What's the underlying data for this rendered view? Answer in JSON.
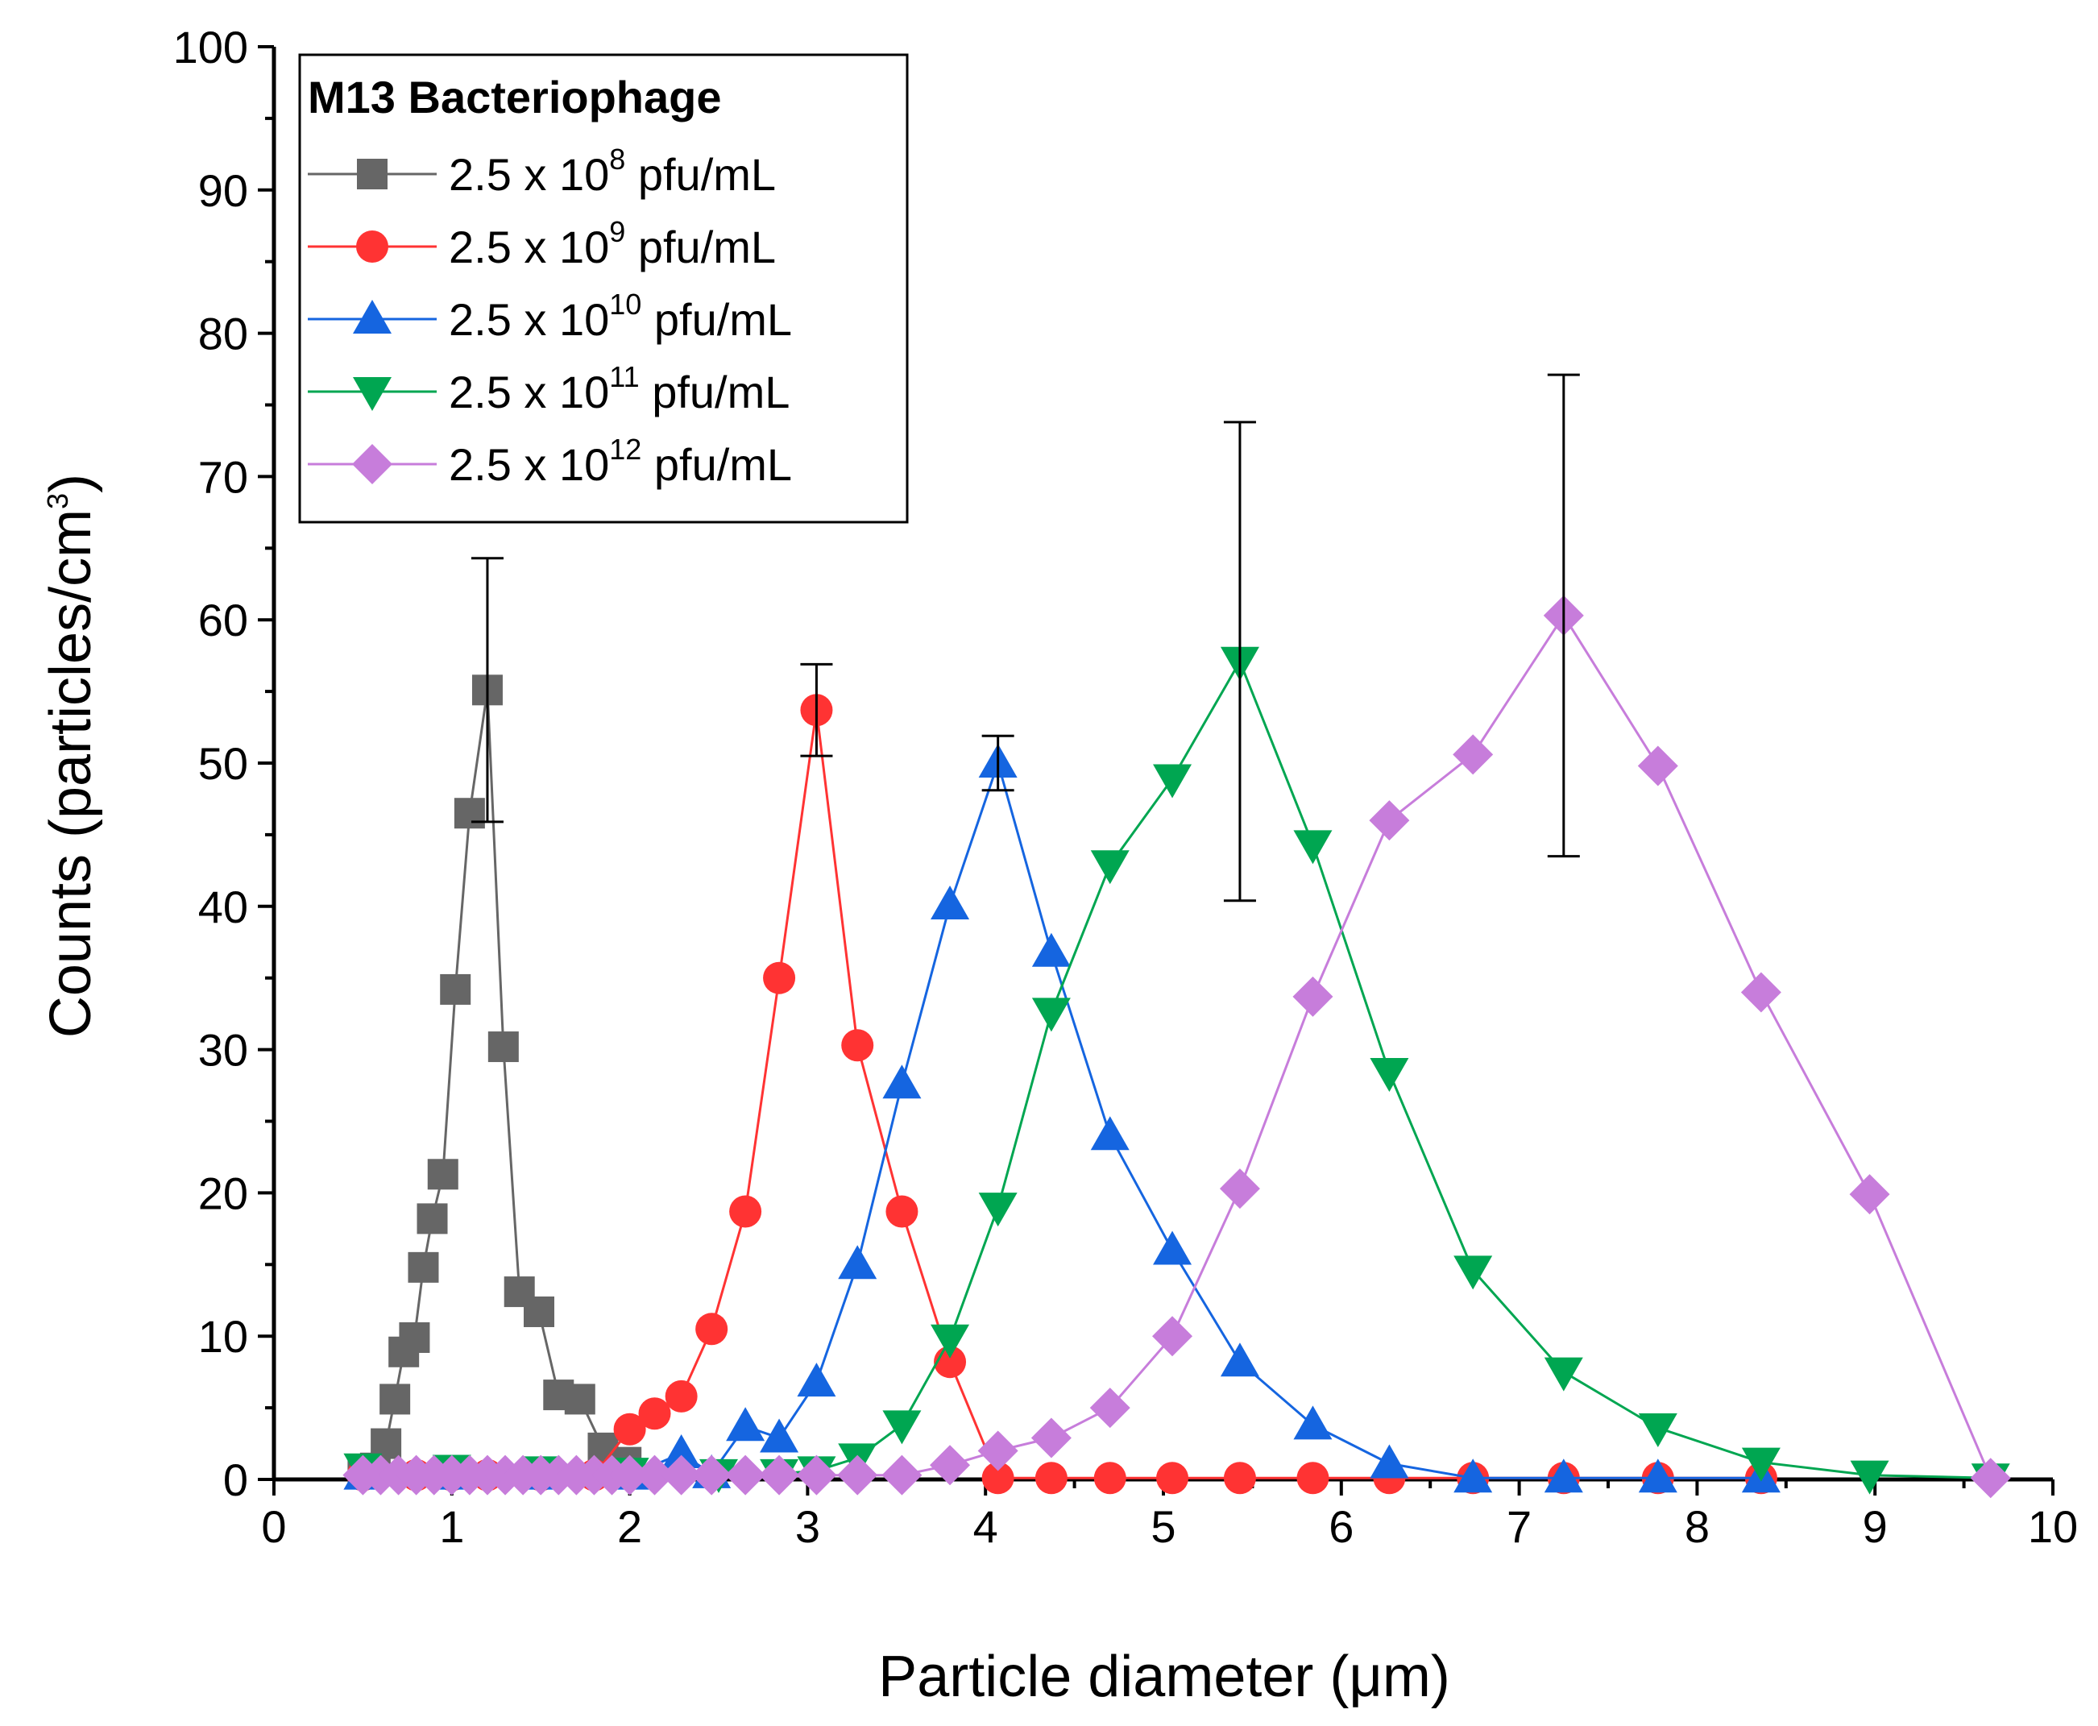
{
  "chart_data": {
    "type": "line",
    "title": "",
    "xlabel": "Particle diameter (μm)",
    "ylabel_main": "Counts (particles/cm",
    "ylabel_sup": "3",
    "ylabel_end": ")",
    "xlim": [
      0,
      10
    ],
    "ylim": [
      0,
      100
    ],
    "xticks": [
      0,
      1,
      2,
      3,
      4,
      5,
      6,
      7,
      8,
      9,
      10
    ],
    "yticks": [
      0,
      10,
      20,
      30,
      40,
      50,
      60,
      70,
      80,
      90,
      100
    ],
    "grid": false,
    "legend": {
      "title": "M13 Bacteriophage",
      "position": "top-left"
    },
    "series": [
      {
        "name": "2.5 x 10^8 pfu/mL",
        "label_base": "2.5 x 10",
        "label_exp": "8",
        "label_unit": " pfu/mL",
        "color": "#666666",
        "marker": "square",
        "x": [
          0.5,
          0.57,
          0.63,
          0.68,
          0.73,
          0.79,
          0.84,
          0.89,
          0.95,
          1.02,
          1.1,
          1.2,
          1.29,
          1.38,
          1.49,
          1.6,
          1.72,
          1.85,
          1.98
        ],
        "y": [
          0.5,
          0.8,
          2.5,
          5.6,
          8.9,
          9.9,
          14.8,
          18.2,
          21.3,
          34.2,
          46.5,
          55.1,
          30.2,
          13.1,
          11.7,
          5.9,
          5.6,
          2.2,
          1.2
        ],
        "errors": [
          {
            "x": 1.2,
            "y": 55.1,
            "err": 9.2
          }
        ]
      },
      {
        "name": "2.5 x 10^9 pfu/mL",
        "label_base": "2.5 x 10",
        "label_exp": "9",
        "label_unit": " pfu/mL",
        "color": "#ff3333",
        "marker": "circle",
        "x": [
          0.5,
          0.8,
          1.0,
          1.2,
          1.5,
          1.8,
          2.0,
          2.14,
          2.29,
          2.46,
          2.65,
          2.84,
          3.05,
          3.28,
          3.53,
          3.8,
          4.07,
          4.37,
          4.7,
          5.05,
          5.43,
          5.84,
          6.27,
          6.74,
          7.25,
          7.78,
          8.36
        ],
        "y": [
          0.3,
          0.3,
          0.3,
          0.3,
          0.3,
          0.3,
          3.5,
          4.6,
          5.8,
          10.5,
          18.7,
          35.0,
          53.7,
          30.3,
          18.7,
          8.2,
          0.1,
          0.1,
          0.1,
          0.1,
          0.1,
          0.1,
          0.1,
          0.1,
          0.1,
          0.1,
          0.1
        ],
        "errors": [
          {
            "x": 3.05,
            "y": 53.7,
            "err": 3.2
          }
        ]
      },
      {
        "name": "2.5 x 10^10 pfu/mL",
        "label_base": "2.5 x 10",
        "label_exp": "10",
        "label_unit": " pfu/mL",
        "color": "#1565e0",
        "marker": "triangle-up",
        "x": [
          0.5,
          1.0,
          1.5,
          2.0,
          2.29,
          2.46,
          2.65,
          2.84,
          3.05,
          3.28,
          3.53,
          3.8,
          4.07,
          4.37,
          4.7,
          5.05,
          5.43,
          5.84,
          6.27,
          6.74,
          7.25,
          7.78,
          8.36
        ],
        "y": [
          0.3,
          0.3,
          0.3,
          0.3,
          1.8,
          0.4,
          3.7,
          2.9,
          6.8,
          15.0,
          27.6,
          40.1,
          50.0,
          36.8,
          24.0,
          16.0,
          8.2,
          3.8,
          1.1,
          0.1,
          0.1,
          0.1,
          0.1
        ],
        "errors": [
          {
            "x": 4.07,
            "y": 50.0,
            "err": 1.9
          }
        ]
      },
      {
        "name": "2.5 x 10^11 pfu/mL",
        "label_base": "2.5 x 10",
        "label_exp": "11",
        "label_unit": " pfu/mL",
        "color": "#00a651",
        "marker": "triangle-down",
        "x": [
          0.5,
          1.0,
          1.5,
          2.0,
          2.5,
          2.84,
          3.05,
          3.28,
          3.53,
          3.8,
          4.07,
          4.37,
          4.7,
          5.05,
          5.43,
          5.84,
          6.27,
          6.74,
          7.25,
          7.78,
          8.36,
          8.97,
          9.65
        ],
        "y": [
          0.8,
          0.7,
          0.6,
          0.5,
          0.4,
          0.4,
          0.6,
          1.5,
          3.8,
          9.8,
          19.0,
          32.6,
          42.9,
          48.9,
          57.1,
          44.3,
          28.4,
          14.6,
          7.5,
          3.6,
          1.2,
          0.3,
          0.1
        ],
        "errors": [
          {
            "x": 5.43,
            "y": 57.1,
            "err": 16.7
          }
        ]
      },
      {
        "name": "2.5 x 10^12 pfu/mL",
        "label_base": "2.5 x 10",
        "label_exp": "12",
        "label_unit": " pfu/mL",
        "color": "#c77ddb",
        "marker": "diamond",
        "x": [
          0.5,
          0.6,
          0.7,
          0.8,
          0.9,
          1.0,
          1.1,
          1.2,
          1.3,
          1.4,
          1.5,
          1.6,
          1.7,
          1.8,
          1.9,
          2.0,
          2.14,
          2.29,
          2.46,
          2.65,
          2.84,
          3.05,
          3.28,
          3.53,
          3.8,
          4.07,
          4.37,
          4.7,
          5.05,
          5.43,
          5.84,
          6.27,
          6.74,
          7.25,
          7.78,
          8.36,
          8.97,
          9.65
        ],
        "y": [
          0.3,
          0.3,
          0.3,
          0.3,
          0.3,
          0.3,
          0.3,
          0.3,
          0.3,
          0.3,
          0.3,
          0.3,
          0.3,
          0.3,
          0.3,
          0.3,
          0.3,
          0.3,
          0.3,
          0.3,
          0.3,
          0.3,
          0.3,
          0.3,
          1.0,
          2.0,
          2.9,
          5.0,
          10.0,
          20.3,
          33.7,
          46.0,
          50.6,
          60.3,
          49.8,
          34.0,
          19.9,
          0.1
        ],
        "errors": [
          {
            "x": 7.25,
            "y": 60.3,
            "err": 16.8
          }
        ]
      }
    ]
  }
}
